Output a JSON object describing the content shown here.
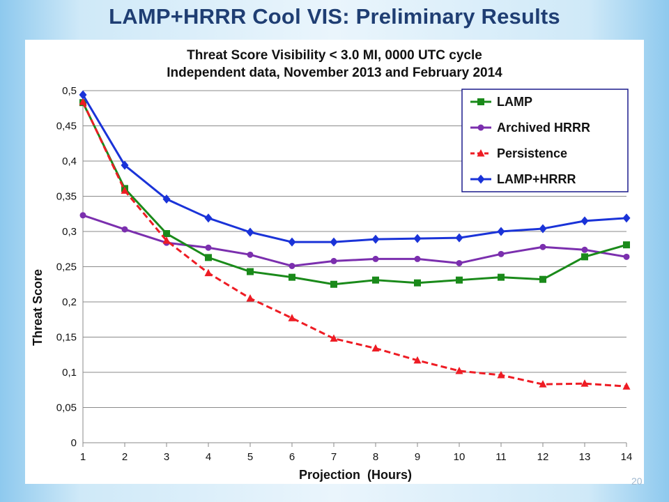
{
  "slide": {
    "title": "LAMP+HRRR Cool VIS: Preliminary Results",
    "page_number": "20"
  },
  "chart_data": {
    "type": "line",
    "title": "Threat Score Visibility < 3.0 MI, 0000 UTC cycle",
    "subtitle": "Independent data, November 2013 and February 2014",
    "xlabel": "Projection  (Hours)",
    "ylabel": "Threat Score",
    "x": [
      1,
      2,
      3,
      4,
      5,
      6,
      7,
      8,
      9,
      10,
      11,
      12,
      13,
      14
    ],
    "ylim": [
      0,
      0.5
    ],
    "yticks": [
      0,
      0.05,
      0.1,
      0.15,
      0.2,
      0.25,
      0.3,
      0.35,
      0.4,
      0.45,
      0.5
    ],
    "ytick_labels": [
      "0",
      "0,05",
      "0,1",
      "0,15",
      "0,2",
      "0,25",
      "0,3",
      "0,35",
      "0,4",
      "0,45",
      "0,5"
    ],
    "grid": "horizontal",
    "legend_position": "top-right",
    "series": [
      {
        "name": "LAMP",
        "color": "#1a8a1a",
        "marker": "square",
        "dash": "solid",
        "values": [
          0.483,
          0.361,
          0.297,
          0.263,
          0.243,
          0.235,
          0.225,
          0.231,
          0.227,
          0.231,
          0.235,
          0.232,
          0.264,
          0.281
        ]
      },
      {
        "name": "Archived HRRR",
        "color": "#7b2fae",
        "marker": "circle",
        "dash": "solid",
        "values": [
          0.323,
          0.303,
          0.284,
          0.277,
          0.267,
          0.251,
          0.258,
          0.261,
          0.261,
          0.255,
          0.268,
          0.278,
          0.274,
          0.264
        ]
      },
      {
        "name": "Persistence",
        "color": "#ee1c24",
        "marker": "triangle",
        "dash": "dashed",
        "values": [
          0.484,
          0.358,
          0.287,
          0.241,
          0.205,
          0.177,
          0.148,
          0.134,
          0.117,
          0.102,
          0.096,
          0.083,
          0.084,
          0.08
        ]
      },
      {
        "name": "LAMP+HRRR",
        "color": "#1a33d8",
        "marker": "diamond",
        "dash": "solid",
        "values": [
          0.494,
          0.394,
          0.346,
          0.319,
          0.299,
          0.285,
          0.285,
          0.289,
          0.29,
          0.291,
          0.3,
          0.304,
          0.315,
          0.319
        ]
      }
    ]
  }
}
